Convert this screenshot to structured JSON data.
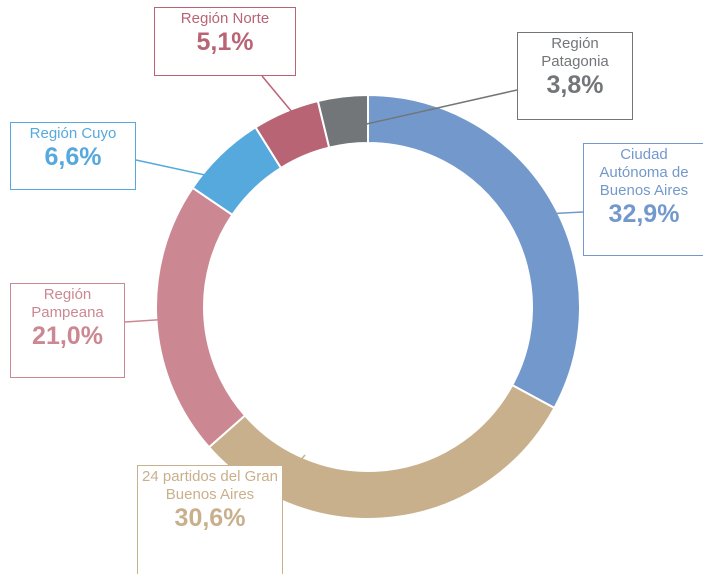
{
  "chart_data": {
    "type": "pie",
    "categories": [
      "Ciudad Autónoma de Buenos Aires",
      "24 partidos del Gran Buenos Aires",
      "Región Pampeana",
      "Región Cuyo",
      "Región Norte",
      "Región Patagonia"
    ],
    "values": [
      32.9,
      30.6,
      21.0,
      6.6,
      5.1,
      3.8
    ],
    "value_labels": [
      "32,9%",
      "30,6%",
      "21,0%",
      "6,6%",
      "5,1%",
      "3,8%"
    ],
    "colors": [
      "#7399cc",
      "#c9b08c",
      "#cc8892",
      "#56a9dd",
      "#b86475",
      "#737679"
    ]
  }
}
